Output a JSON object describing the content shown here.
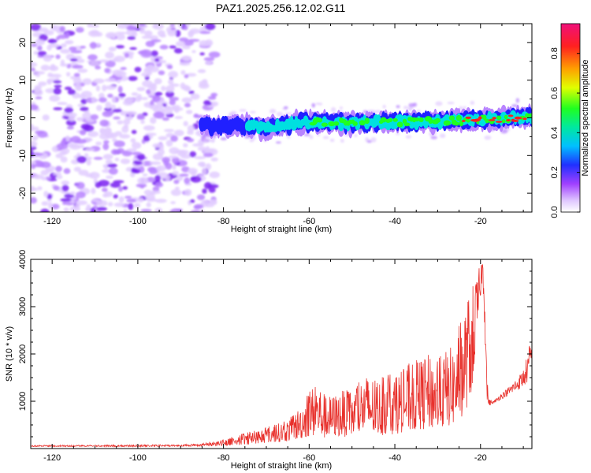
{
  "title": "PAZ1.2025.256.12.02.G11",
  "colors": {
    "blob_light": "#e2ccff",
    "blob_mid": "#b884ff",
    "blob_dark": "#7a22f0",
    "snr_line": "#e8312c",
    "ridge_dark": "#2020ff",
    "ridge_mid": "#00e0e0",
    "ridge_hi": "#20ff20",
    "ridge_peak": "#ff2020"
  },
  "chart_data": [
    {
      "type": "heatmap",
      "title": "PAZ1.2025.256.12.02.G11",
      "xlabel": "Height of straight line (km)",
      "ylabel": "Frequency (Hz)",
      "xlim": [
        -125,
        -8
      ],
      "ylim": [
        -25,
        25
      ],
      "x_ticks": [
        -120,
        -100,
        -80,
        -60,
        -40,
        -20
      ],
      "y_ticks": [
        -20,
        -10,
        0,
        10,
        20
      ],
      "colorbar": {
        "label": "Normalized spectral amplitude",
        "range": [
          0,
          0.95
        ],
        "ticks": [
          "0.0",
          "0.2",
          "0.4",
          "0.6",
          "0.8"
        ],
        "colormap": "rainbow (white-violet-blue-cyan-green-yellow-orange-red-magenta)"
      },
      "features": [
        {
          "region": "x from -125 to -85 km",
          "description": "diffuse low-amplitude noise across all frequencies (-25 to 25 Hz)",
          "amplitude": "0.05-0.15"
        },
        {
          "region": "x from -85 to -8 km",
          "description": "narrow band near 0 Hz (about -4 to 2 Hz)",
          "amplitude": "0.2-0.95"
        }
      ],
      "ridge_center_hz": {
        "x": [
          -84,
          -70,
          -60,
          -50,
          -40,
          -30,
          -20,
          -10
        ],
        "y": [
          -2,
          -2.5,
          -1,
          -1.5,
          -1,
          -1,
          -0.5,
          0
        ]
      },
      "peak_amplitude": {
        "x": [
          -84,
          -70,
          -60,
          -50,
          -40,
          -30,
          -20,
          -10
        ],
        "y": [
          0.25,
          0.4,
          0.45,
          0.5,
          0.55,
          0.6,
          0.85,
          0.9
        ]
      }
    },
    {
      "type": "line",
      "xlabel": "Height of straight line (km)",
      "ylabel": "SNR (10 * v/v)",
      "xlim": [
        -125,
        -8
      ],
      "ylim": [
        0,
        4000
      ],
      "x_ticks": [
        -120,
        -100,
        -80,
        -60,
        -40,
        -20
      ],
      "y_ticks": [
        1000,
        2000,
        3000,
        4000
      ],
      "series": [
        {
          "envelope_x": [
            -125,
            -100,
            -90,
            -85,
            -80,
            -75,
            -70,
            -65,
            -62,
            -60,
            -58,
            -56,
            -54,
            -52,
            -50,
            -48,
            -46,
            -44,
            -42,
            -40,
            -38,
            -36,
            -34,
            -32,
            -30,
            -28,
            -26,
            -25,
            -24,
            -23,
            -22,
            -21,
            -20,
            -19.5,
            -19,
            -18.5,
            -18,
            -17,
            -16,
            -15,
            -14,
            -13,
            -12,
            -11,
            -10,
            -9,
            -8
          ],
          "envelope_y": [
            70,
            80,
            85,
            110,
            200,
            330,
            450,
            600,
            900,
            1250,
            1400,
            1100,
            1150,
            1250,
            1200,
            1450,
            1600,
            1400,
            1650,
            1550,
            1700,
            1850,
            1900,
            2000,
            1900,
            2100,
            2200,
            2600,
            2900,
            3200,
            3450,
            3650,
            3900,
            4100,
            3800,
            1500,
            1050,
            1000,
            1100,
            1200,
            1250,
            1350,
            1450,
            1550,
            1700,
            2000,
            2500
          ],
          "baseline_y": [
            40,
            40,
            45,
            50,
            60,
            80,
            120,
            150,
            200,
            250,
            250,
            200,
            250,
            250,
            250,
            300,
            300,
            250,
            300,
            300,
            350,
            350,
            400,
            400,
            400,
            450,
            500,
            600,
            700,
            900,
            1200,
            2000,
            3200,
            3600,
            2500,
            1000,
            900,
            950,
            1000,
            1050,
            1100,
            1150,
            1200,
            1250,
            1300,
            1400,
            1700
          ]
        }
      ]
    }
  ]
}
